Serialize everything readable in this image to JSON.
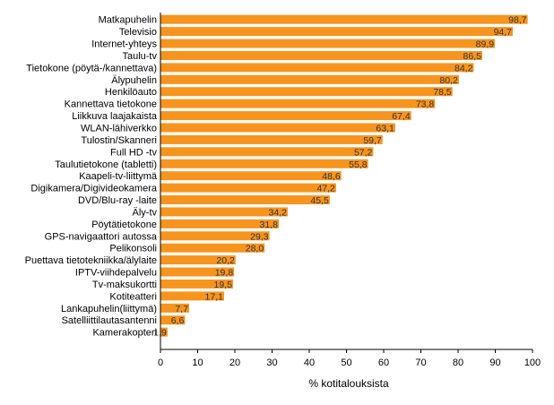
{
  "chart_data": {
    "type": "bar",
    "orientation": "horizontal",
    "categories": [
      "Matkapuhelin",
      "Televisio",
      "Internet-yhteys",
      "Taulu-tv",
      "Tietokone (pöytä-/kannettava)",
      "Älypuhelin",
      "Henkilöauto",
      "Kannettava tietokone",
      "Liikkuva laajakaista",
      "WLAN-lähiverkko",
      "Tulostin/Skanneri",
      "Full HD -tv",
      "Taulutietokone (tabletti)",
      "Kaapeli-tv-liittymä",
      "Digikamera/Digivideokamera",
      "DVD/Blu-ray -laite",
      "Äly-tv",
      "Pöytätietokone",
      "GPS-navigaattori autossa",
      "Pelikonsoli",
      "Puettava tietotekniikka/älylaite",
      "IPTV-viihdepalvelu",
      "Tv-maksukortti",
      "Kotiteatteri",
      "Lankapuhelin(liittymä)",
      "Satelliittilautasantenni",
      "Kamerakopteri"
    ],
    "values": [
      98.7,
      94.7,
      89.9,
      86.5,
      84.2,
      80.2,
      78.5,
      73.8,
      67.4,
      63.1,
      59.7,
      57.2,
      55.8,
      48.6,
      47.2,
      45.5,
      34.2,
      31.8,
      29.3,
      28.0,
      20.2,
      19.8,
      19.5,
      17.1,
      7.7,
      6.6,
      1.9
    ],
    "data_labels": [
      "98,7",
      "94,7",
      "89,9",
      "86,5",
      "84,2",
      "80,2",
      "78,5",
      "73,8",
      "67,4",
      "63,1",
      "59,7",
      "57,2",
      "55,8",
      "48,6",
      "47,2",
      "45,5",
      "34,2",
      "31,8",
      "29,3",
      "28,0",
      "20,2",
      "19,8",
      "19,5",
      "17,1",
      "7,7",
      "6,6",
      "1,9"
    ],
    "xlabel": "% kotitalouksista",
    "xlim": [
      0,
      100
    ],
    "xticks": [
      "0",
      "10",
      "20",
      "30",
      "40",
      "50",
      "60",
      "70",
      "80",
      "90",
      "100"
    ],
    "grid": false,
    "bar_color": "#F7941D"
  }
}
